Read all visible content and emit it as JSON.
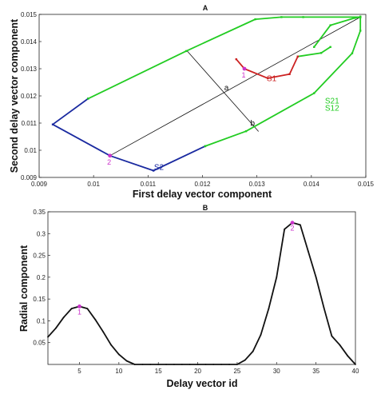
{
  "chart_data": [
    {
      "type": "line",
      "title": "A",
      "xlabel": "First delay vector component",
      "ylabel": "Second delay vector component",
      "xlim": [
        0.009,
        0.015
      ],
      "ylim": [
        0.009,
        0.015
      ],
      "xticks": [
        "0.009",
        "0.01",
        "0.011",
        "0.012",
        "0.013",
        "0.014",
        "0.015"
      ],
      "yticks": [
        "0.009",
        "0.01",
        "0.011",
        "0.012",
        "0.013",
        "0.014",
        "0.015"
      ],
      "colors": {
        "green": "#22cc22",
        "blue": "#1a2aa0",
        "red": "#cc2222",
        "black": "#111111",
        "magenta": "#cc33cc"
      },
      "series": [
        {
          "name": "S2",
          "color": "#1a2aa0",
          "x": [
            0.0099,
            0.00925,
            0.0103,
            0.0111,
            0.01205
          ],
          "y": [
            0.0119,
            0.01095,
            0.0098,
            0.00925,
            0.01015
          ]
        },
        {
          "name": "S21",
          "color": "#22cc22",
          "x": [
            0.0099,
            0.0117,
            0.01297,
            0.01345,
            0.01385,
            0.0149,
            0.0149,
            0.0149
          ],
          "y": [
            0.0119,
            0.01365,
            0.01482,
            0.0149,
            0.0149,
            0.0149,
            0.01492,
            0.0149
          ]
        },
        {
          "name": "S12",
          "color": "#22cc22",
          "x": [
            0.01205,
            0.0128,
            0.01405,
            0.01475,
            0.0149,
            0.0149
          ],
          "y": [
            0.01015,
            0.0107,
            0.0121,
            0.01357,
            0.0144,
            0.0149
          ]
        },
        {
          "name": "",
          "color": "#22cc22",
          "x": [
            0.01405,
            0.01435,
            0.0148,
            0.0149
          ],
          "y": [
            0.0138,
            0.0146,
            0.01487,
            0.0149
          ]
        },
        {
          "name": "",
          "color": "#22cc22",
          "x": [
            0.01375,
            0.01418,
            0.01435
          ],
          "y": [
            0.01345,
            0.01358,
            0.0138
          ]
        },
        {
          "name": "S1",
          "color": "#cc2222",
          "x": [
            0.01262,
            0.01277,
            0.0132,
            0.0136,
            0.01375
          ],
          "y": [
            0.01335,
            0.013,
            0.01265,
            0.0128,
            0.01345
          ]
        }
      ],
      "diagonal": {
        "x": [
          0.0103,
          0.0149
        ],
        "y": [
          0.0098,
          0.0149
        ]
      },
      "perpendicular": {
        "x": [
          0.01172,
          0.01303
        ],
        "y": [
          0.01365,
          0.01069
        ]
      },
      "points": [
        {
          "label": "1",
          "x": 0.01277,
          "y": 0.013
        },
        {
          "label": "2",
          "x": 0.0103,
          "y": 0.0098
        }
      ],
      "annotations": [
        {
          "text": "a",
          "x": 0.0124,
          "y": 0.0122
        },
        {
          "text": "b",
          "x": 0.01288,
          "y": 0.0109
        },
        {
          "text": "S1",
          "x": 0.01318,
          "y": 0.01255
        },
        {
          "text": "S2",
          "x": 0.01111,
          "y": 0.00928
        },
        {
          "text": "S21",
          "x": 0.01425,
          "y": 0.01172
        },
        {
          "text": "S12",
          "x": 0.01425,
          "y": 0.01145
        }
      ]
    },
    {
      "type": "line",
      "title": "B",
      "xlabel": "Delay vector id",
      "ylabel": "Radial  component",
      "xlim": [
        1,
        40
      ],
      "ylim": [
        0,
        0.35
      ],
      "xticks": [
        "5",
        "10",
        "15",
        "20",
        "25",
        "30",
        "35",
        "40"
      ],
      "yticks": [
        "0.05",
        "0.1",
        "0.15",
        "0.2",
        "0.25",
        "0.3",
        "0.35"
      ],
      "series": [
        {
          "name": "",
          "color": "#111111",
          "x": [
            1,
            2,
            3,
            4,
            5,
            6,
            7,
            8,
            9,
            10,
            11,
            12,
            13,
            14,
            15,
            16,
            17,
            18,
            19,
            20,
            21,
            22,
            23,
            24,
            25,
            26,
            27,
            28,
            29,
            30,
            31,
            32,
            33,
            34,
            35,
            36,
            37,
            38,
            39,
            40
          ],
          "y": [
            0.063,
            0.083,
            0.108,
            0.128,
            0.133,
            0.128,
            0.103,
            0.075,
            0.045,
            0.023,
            0.008,
            0.0,
            0.0,
            0.0,
            0.0,
            0.0,
            0.0,
            0.0,
            0.0,
            0.0,
            0.0,
            0.0,
            0.0,
            0.0,
            0.0,
            0.01,
            0.03,
            0.068,
            0.128,
            0.2,
            0.31,
            0.325,
            0.32,
            0.26,
            0.2,
            0.13,
            0.065,
            0.045,
            0.02,
            0.0
          ]
        }
      ],
      "points": [
        {
          "label": "1",
          "x": 5,
          "y": 0.133
        },
        {
          "label": "2",
          "x": 32,
          "y": 0.325
        }
      ]
    }
  ]
}
